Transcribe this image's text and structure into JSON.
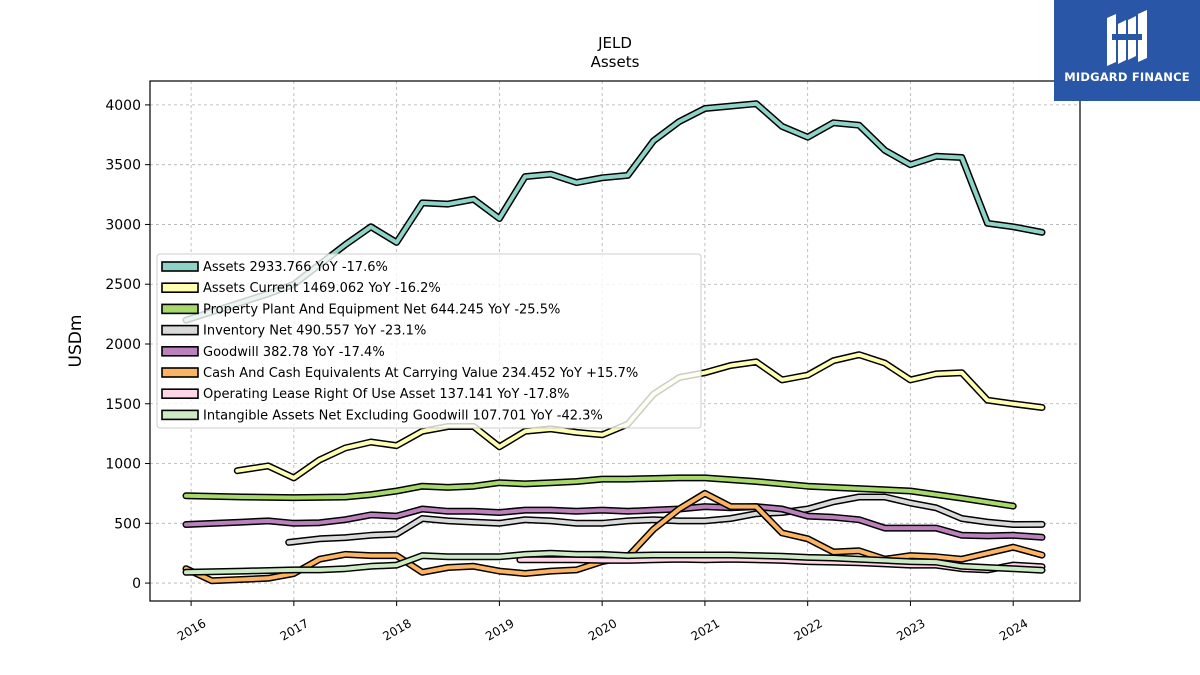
{
  "logo": {
    "text": "MIDGARD FINANCE"
  },
  "chart_data": {
    "type": "line",
    "title": "JELD",
    "subtitle": "Assets",
    "xlabel": "",
    "ylabel": "USDm",
    "xlim": [
      2015.6,
      2024.65
    ],
    "ylim": [
      -150,
      4200
    ],
    "xticks": [
      2016,
      2017,
      2018,
      2019,
      2020,
      2021,
      2022,
      2023,
      2024
    ],
    "xtick_labels": [
      "2016",
      "2017",
      "2018",
      "2019",
      "2020",
      "2021",
      "2022",
      "2023",
      "2024"
    ],
    "yticks": [
      0,
      500,
      1000,
      1500,
      2000,
      2500,
      3000,
      3500,
      4000
    ],
    "ytick_labels": [
      "0",
      "500",
      "1000",
      "1500",
      "2000",
      "2500",
      "3000",
      "3500",
      "4000"
    ],
    "grid": true,
    "legend_position": "center-left",
    "series": [
      {
        "name": "Assets",
        "legend": "Assets  2933.766 YoY -17.6%",
        "color": "#8dd3c7",
        "x": [
          2015.95,
          2016.75,
          2017.0,
          2017.5,
          2017.75,
          2018.0,
          2018.25,
          2018.5,
          2018.75,
          2019.0,
          2019.25,
          2019.5,
          2019.75,
          2020.0,
          2020.25,
          2020.5,
          2020.75,
          2021.0,
          2021.25,
          2021.5,
          2021.75,
          2022.0,
          2022.25,
          2022.5,
          2022.75,
          2023.0,
          2023.25,
          2023.5,
          2023.75,
          2024.0,
          2024.28
        ],
        "y": [
          2200,
          2420,
          2500,
          2830,
          2980,
          2850,
          3180,
          3170,
          3210,
          3050,
          3400,
          3420,
          3350,
          3390,
          3410,
          3700,
          3860,
          3970,
          3990,
          4010,
          3820,
          3730,
          3850,
          3830,
          3620,
          3500,
          3570,
          3560,
          3010,
          2980,
          2934
        ]
      },
      {
        "name": "Assets Current",
        "legend": "Assets Current  1469.062 YoY -16.2%",
        "color": "#ffffb3",
        "x": [
          2016.45,
          2016.75,
          2017.0,
          2017.25,
          2017.5,
          2017.75,
          2018.0,
          2018.25,
          2018.5,
          2018.75,
          2019.0,
          2019.25,
          2019.5,
          2019.75,
          2020.0,
          2020.25,
          2020.5,
          2020.75,
          2021.0,
          2021.25,
          2021.5,
          2021.75,
          2022.0,
          2022.25,
          2022.5,
          2022.75,
          2023.0,
          2023.25,
          2023.5,
          2023.75,
          2024.0,
          2024.28
        ],
        "y": [
          940,
          980,
          880,
          1030,
          1130,
          1180,
          1150,
          1270,
          1310,
          1310,
          1140,
          1270,
          1290,
          1260,
          1240,
          1330,
          1580,
          1720,
          1760,
          1820,
          1850,
          1700,
          1740,
          1860,
          1910,
          1840,
          1700,
          1750,
          1760,
          1530,
          1500,
          1469
        ]
      },
      {
        "name": "Property Plant And Equipment Net",
        "legend": "Property Plant And Equipment Net  644.245 YoY -25.5%",
        "color": "#a6d96a",
        "x": [
          2015.95,
          2016.5,
          2017.0,
          2017.5,
          2017.75,
          2018.0,
          2018.25,
          2018.5,
          2018.75,
          2019.0,
          2019.25,
          2019.5,
          2019.75,
          2020.0,
          2020.25,
          2020.5,
          2020.75,
          2021.0,
          2021.5,
          2022.0,
          2022.5,
          2023.0,
          2023.5,
          2024.0
        ],
        "y": [
          730,
          720,
          715,
          720,
          740,
          770,
          810,
          800,
          810,
          840,
          830,
          840,
          850,
          870,
          870,
          875,
          880,
          880,
          850,
          810,
          790,
          770,
          710,
          644
        ]
      },
      {
        "name": "Inventory Net",
        "legend": "Inventory Net  490.557 YoY -23.1%",
        "color": "#d9d9d9",
        "x": [
          2016.95,
          2017.25,
          2017.5,
          2017.75,
          2018.0,
          2018.25,
          2018.5,
          2018.75,
          2019.0,
          2019.25,
          2019.5,
          2019.75,
          2020.0,
          2020.25,
          2020.5,
          2020.75,
          2021.0,
          2021.25,
          2021.5,
          2021.75,
          2022.0,
          2022.25,
          2022.5,
          2022.75,
          2023.0,
          2023.25,
          2023.5,
          2023.75,
          2024.0,
          2024.28
        ],
        "y": [
          340,
          370,
          380,
          400,
          410,
          540,
          520,
          510,
          500,
          530,
          520,
          500,
          500,
          520,
          530,
          520,
          520,
          540,
          580,
          590,
          620,
          680,
          720,
          720,
          670,
          630,
          540,
          510,
          490,
          491
        ]
      },
      {
        "name": "Goodwill",
        "legend": "Goodwill  382.78 YoY -17.4%",
        "color": "#bc80bd",
        "x": [
          2015.95,
          2016.5,
          2016.75,
          2017.0,
          2017.25,
          2017.5,
          2017.75,
          2018.0,
          2018.25,
          2018.5,
          2018.75,
          2019.0,
          2019.25,
          2019.5,
          2019.75,
          2020.0,
          2020.25,
          2020.5,
          2020.75,
          2021.0,
          2021.25,
          2021.5,
          2021.75,
          2022.0,
          2022.25,
          2022.5,
          2022.75,
          2023.0,
          2023.25,
          2023.5,
          2023.75,
          2024.0,
          2024.28
        ],
        "y": [
          490,
          510,
          520,
          500,
          505,
          530,
          570,
          560,
          620,
          600,
          600,
          590,
          610,
          610,
          600,
          610,
          600,
          610,
          620,
          640,
          630,
          640,
          620,
          560,
          550,
          530,
          460,
          460,
          460,
          400,
          395,
          400,
          383
        ]
      },
      {
        "name": "Cash And Cash Equivalents At Carrying Value",
        "legend": "Cash And Cash Equivalents At Carrying Value  234.452 YoY +15.7%",
        "color": "#fdb462",
        "x": [
          2015.95,
          2016.2,
          2016.75,
          2017.0,
          2017.25,
          2017.5,
          2017.75,
          2018.0,
          2018.25,
          2018.5,
          2018.75,
          2019.0,
          2019.25,
          2019.5,
          2019.75,
          2020.0,
          2020.25,
          2020.5,
          2020.75,
          2021.0,
          2021.25,
          2021.5,
          2021.75,
          2022.0,
          2022.25,
          2022.5,
          2022.75,
          2023.0,
          2023.25,
          2023.5,
          2023.75,
          2024.0,
          2024.28
        ],
        "y": [
          120,
          20,
          40,
          80,
          200,
          240,
          230,
          230,
          90,
          130,
          140,
          100,
          80,
          100,
          110,
          180,
          220,
          450,
          620,
          750,
          640,
          640,
          420,
          370,
          260,
          270,
          200,
          230,
          220,
          200,
          250,
          300,
          234
        ]
      },
      {
        "name": "Operating Lease Right Of Use Asset",
        "legend": "Operating Lease Right Of Use Asset  137.141 YoY -17.8%",
        "color": "#ffd6e8",
        "x": [
          2019.2,
          2019.5,
          2019.75,
          2020.0,
          2020.25,
          2020.5,
          2020.75,
          2021.0,
          2021.25,
          2021.5,
          2021.75,
          2022.0,
          2022.25,
          2022.5,
          2022.75,
          2023.0,
          2023.25,
          2023.5,
          2023.75,
          2024.0,
          2024.28
        ],
        "y": [
          195,
          195,
          195,
          190,
          190,
          195,
          200,
          195,
          200,
          195,
          190,
          180,
          175,
          170,
          160,
          150,
          150,
          120,
          110,
          150,
          137
        ]
      },
      {
        "name": "Intangible Assets Net Excluding Goodwill",
        "legend": "Intangible Assets Net Excluding Goodwill  107.701 YoY -42.3%",
        "color": "#ccebc5",
        "x": [
          2015.95,
          2016.5,
          2017.0,
          2017.25,
          2017.5,
          2017.75,
          2018.0,
          2018.25,
          2018.5,
          2018.75,
          2019.0,
          2019.25,
          2019.5,
          2019.75,
          2020.0,
          2020.25,
          2020.5,
          2020.75,
          2021.0,
          2021.25,
          2021.5,
          2021.75,
          2022.0,
          2022.25,
          2022.5,
          2022.75,
          2023.0,
          2023.25,
          2023.5,
          2023.75,
          2024.0,
          2024.28
        ],
        "y": [
          90,
          100,
          110,
          110,
          120,
          140,
          150,
          230,
          220,
          220,
          220,
          240,
          250,
          240,
          240,
          230,
          235,
          235,
          235,
          235,
          230,
          225,
          215,
          210,
          200,
          190,
          180,
          175,
          140,
          130,
          120,
          108
        ]
      }
    ]
  }
}
